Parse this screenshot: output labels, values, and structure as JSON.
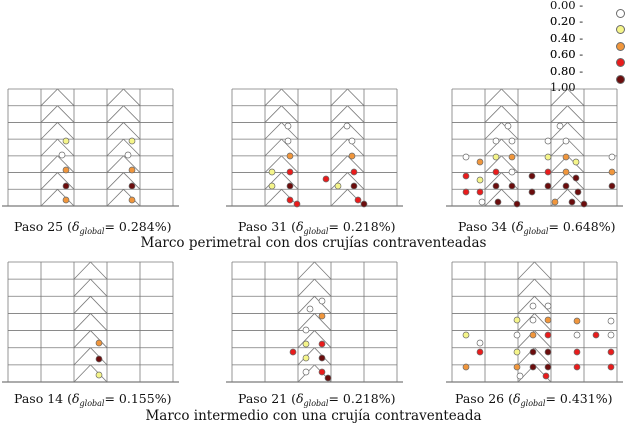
{
  "legend": [
    {
      "label": "0.00 - 0.20",
      "color": "#ffffff"
    },
    {
      "label": "0.20 - 0.40",
      "color": "#f5f58a"
    },
    {
      "label": "0.40 - 0.60",
      "color": "#f0963c"
    },
    {
      "label": "0.60 - 0.80",
      "color": "#e81c1c"
    },
    {
      "label": "0.80 - 1.00",
      "color": "#6b0d0d"
    }
  ],
  "panels": [
    {
      "step_text": "Paso 25 (",
      "delta_symbol": "δ",
      "delta_sub": "global",
      "value_text": "= 0.284%)"
    },
    {
      "step_text": "Paso 31 (",
      "delta_symbol": "δ",
      "delta_sub": "global",
      "value_text": "= 0.218%)"
    },
    {
      "step_text": "Paso 34 (",
      "delta_symbol": "δ",
      "delta_sub": "global",
      "value_text": "= 0.648%)"
    },
    {
      "step_text": "Paso 14 (",
      "delta_symbol": "δ",
      "delta_sub": "global",
      "value_text": "= 0.155%)"
    },
    {
      "step_text": "Paso 21 (",
      "delta_symbol": "δ",
      "delta_sub": "global",
      "value_text": "= 0.218%)"
    },
    {
      "step_text": "Paso 26 (",
      "delta_symbol": "δ",
      "delta_sub": "global",
      "value_text": "= 0.431%)"
    }
  ],
  "captions": {
    "top": "Marco perimetral con dos crujías contraventeadas",
    "bottom": "Marco intermedio con una crujía contraventeada"
  }
}
